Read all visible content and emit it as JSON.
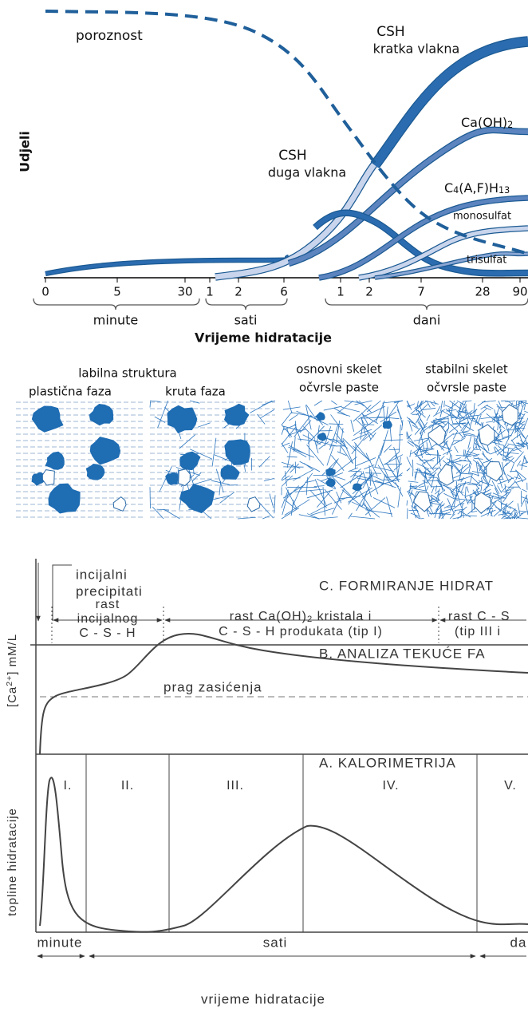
{
  "phases": {
    "y_label": "Udjeli",
    "labels": {
      "porosity": "poroznost",
      "csh_short_1": "CSH",
      "csh_short_2": "kratka vlakna",
      "caoh2": [
        "Ca(OH)",
        "2"
      ],
      "csh_long_1": "CSH",
      "csh_long_2": "duga vlakna",
      "c4afh13": [
        "C",
        "4",
        "(A,F)H",
        "13"
      ],
      "monosulfat": "monosulfat",
      "trisulfat": "trisulfat"
    },
    "ticks": [
      "0",
      "5",
      "30",
      "1",
      "2",
      "6",
      "1",
      "2",
      "7",
      "28",
      "90"
    ],
    "groups": [
      "minute",
      "sati",
      "dani"
    ],
    "x_title": "Vrijeme hidratacije"
  },
  "structures": {
    "labile": "labilna struktura",
    "plastic": "plastična faza",
    "rigid": "kruta faza",
    "basic_1": "osnovni skelet",
    "basic_2": "očvrsle paste",
    "stable_1": "stabilni skelet",
    "stable_2": "očvrsle paste"
  },
  "stages": {
    "initial_1": "incijalni",
    "initial_2": "precipitati",
    "c_title": "C. FORMIRANJE HIDRAT",
    "growth_1": [
      "rast",
      "incijalnog",
      "C - S - H"
    ],
    "growth_2": [
      [
        "rast Ca(OH)",
        "2",
        " kristala i"
      ],
      "C - S - H produkata (tip I)"
    ],
    "growth_3": [
      "rast C - S",
      "(tip III i"
    ],
    "b_title": "B. ANALIZA TEKUĆE FA",
    "threshold": "prag zasićenja",
    "b_y_label": [
      "[Ca",
      "2+",
      "] mM/L"
    ],
    "a_title": "A. KALORIMETRIJA",
    "periods": [
      "I.",
      "II.",
      "III.",
      "IV.",
      "V."
    ],
    "a_y_label": "topline hidratacije",
    "time_groups": [
      "minute",
      "sati",
      "da"
    ],
    "x_title": "vrijeme hidratacije"
  }
}
